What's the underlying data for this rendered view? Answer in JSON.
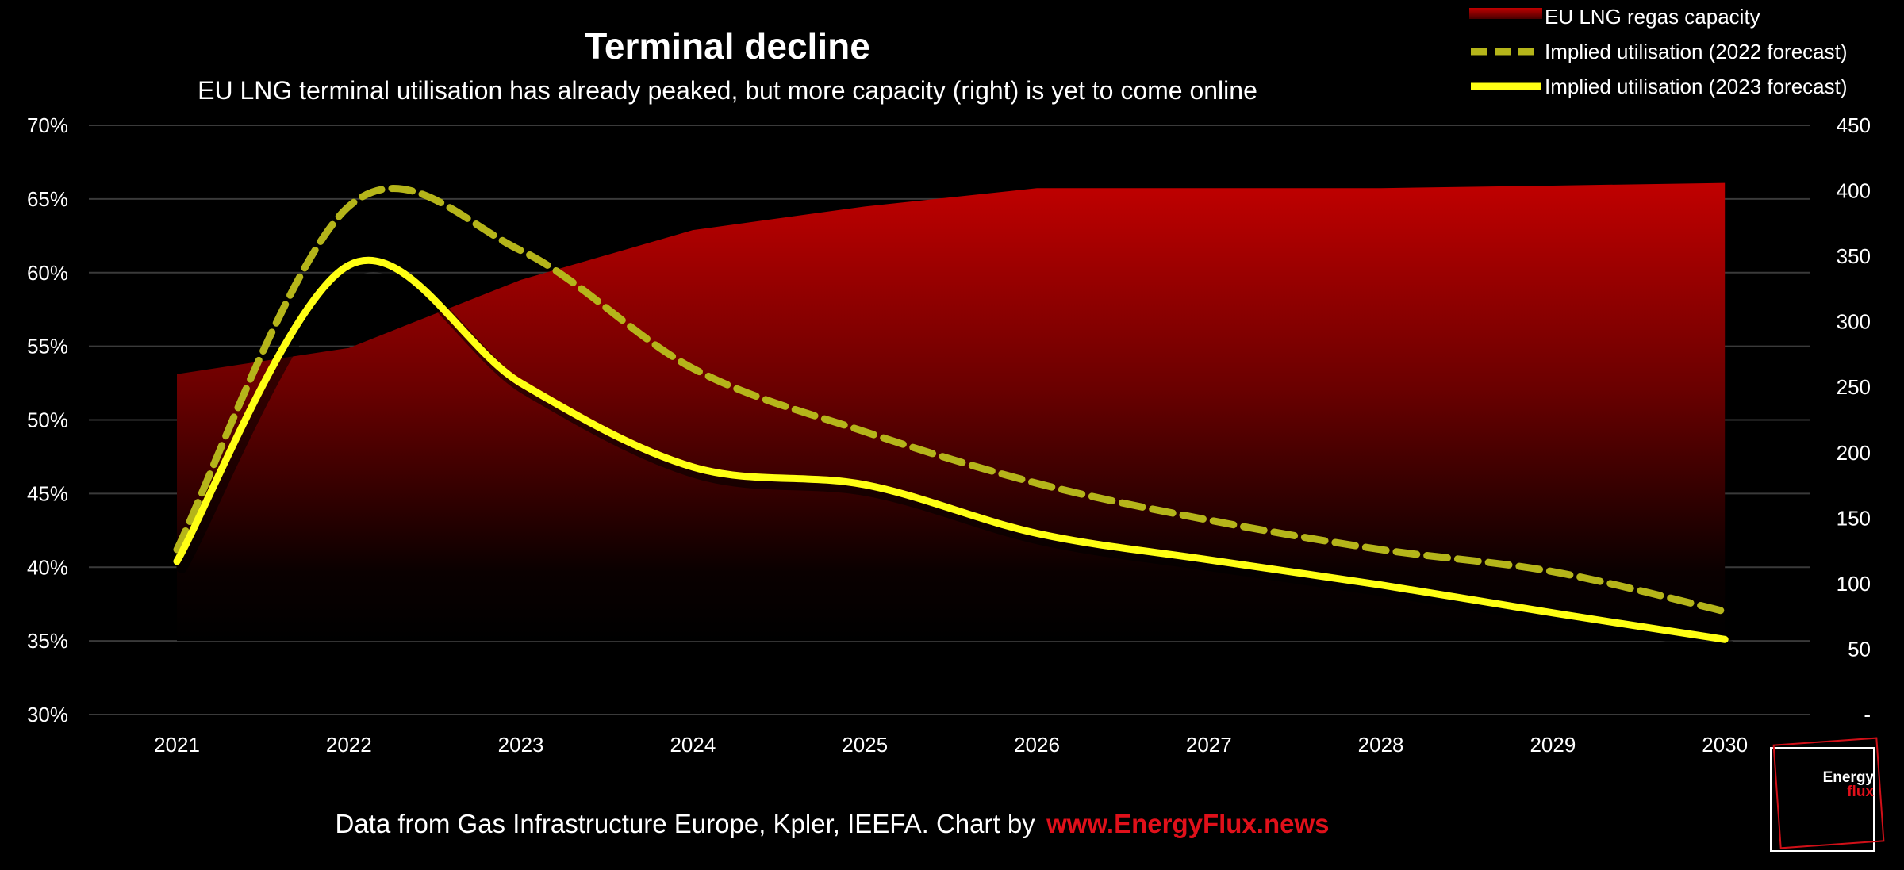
{
  "chart_data": {
    "type": "line+area",
    "title": "Terminal decline",
    "subtitle": "EU LNG terminal utilisation has already peaked, but more capacity (right) is yet to come online",
    "categories": [
      "2021",
      "2022",
      "2023",
      "2024",
      "2025",
      "2026",
      "2027",
      "2028",
      "2029",
      "2030"
    ],
    "y_left": {
      "ticks": [
        "30%",
        "35%",
        "40%",
        "45%",
        "50%",
        "55%",
        "60%",
        "65%",
        "70%"
      ],
      "range": [
        30,
        70
      ]
    },
    "y_right": {
      "ticks": [
        "-",
        "50",
        "100",
        "150",
        "200",
        "250",
        "300",
        "350",
        "400",
        "450"
      ],
      "range": [
        0,
        450
      ]
    },
    "grid": true,
    "legend_position": "top-right",
    "series": [
      {
        "name": "EU LNG regas capacity",
        "type": "area",
        "axis": "right",
        "values": [
          260,
          280,
          332,
          370,
          388,
          402,
          402,
          402,
          404,
          406
        ]
      },
      {
        "name": "Implied utilisation (2022 forecast)",
        "type": "dashed-line",
        "axis": "left",
        "values": [
          41.2,
          64.5,
          61.5,
          53.5,
          49.2,
          45.7,
          43.2,
          41.2,
          39.7,
          37.0
        ]
      },
      {
        "name": "Implied utilisation (2023 forecast)",
        "type": "line",
        "axis": "left",
        "values": [
          40.4,
          60.5,
          52.5,
          46.8,
          45.6,
          42.3,
          40.5,
          38.8,
          36.9,
          35.1
        ]
      }
    ],
    "colors": {
      "capacity": "#c00000",
      "forecast_2022": "#b5b51a",
      "forecast_2023": "#ffff14",
      "grid": "#3a3a3a"
    }
  },
  "source": {
    "text": "Data from Gas Infrastructure Europe, Kpler, IEEFA. Chart by",
    "link": "www.EnergyFlux.news"
  },
  "logo": {
    "line1": "Energy",
    "line2": "flux"
  }
}
